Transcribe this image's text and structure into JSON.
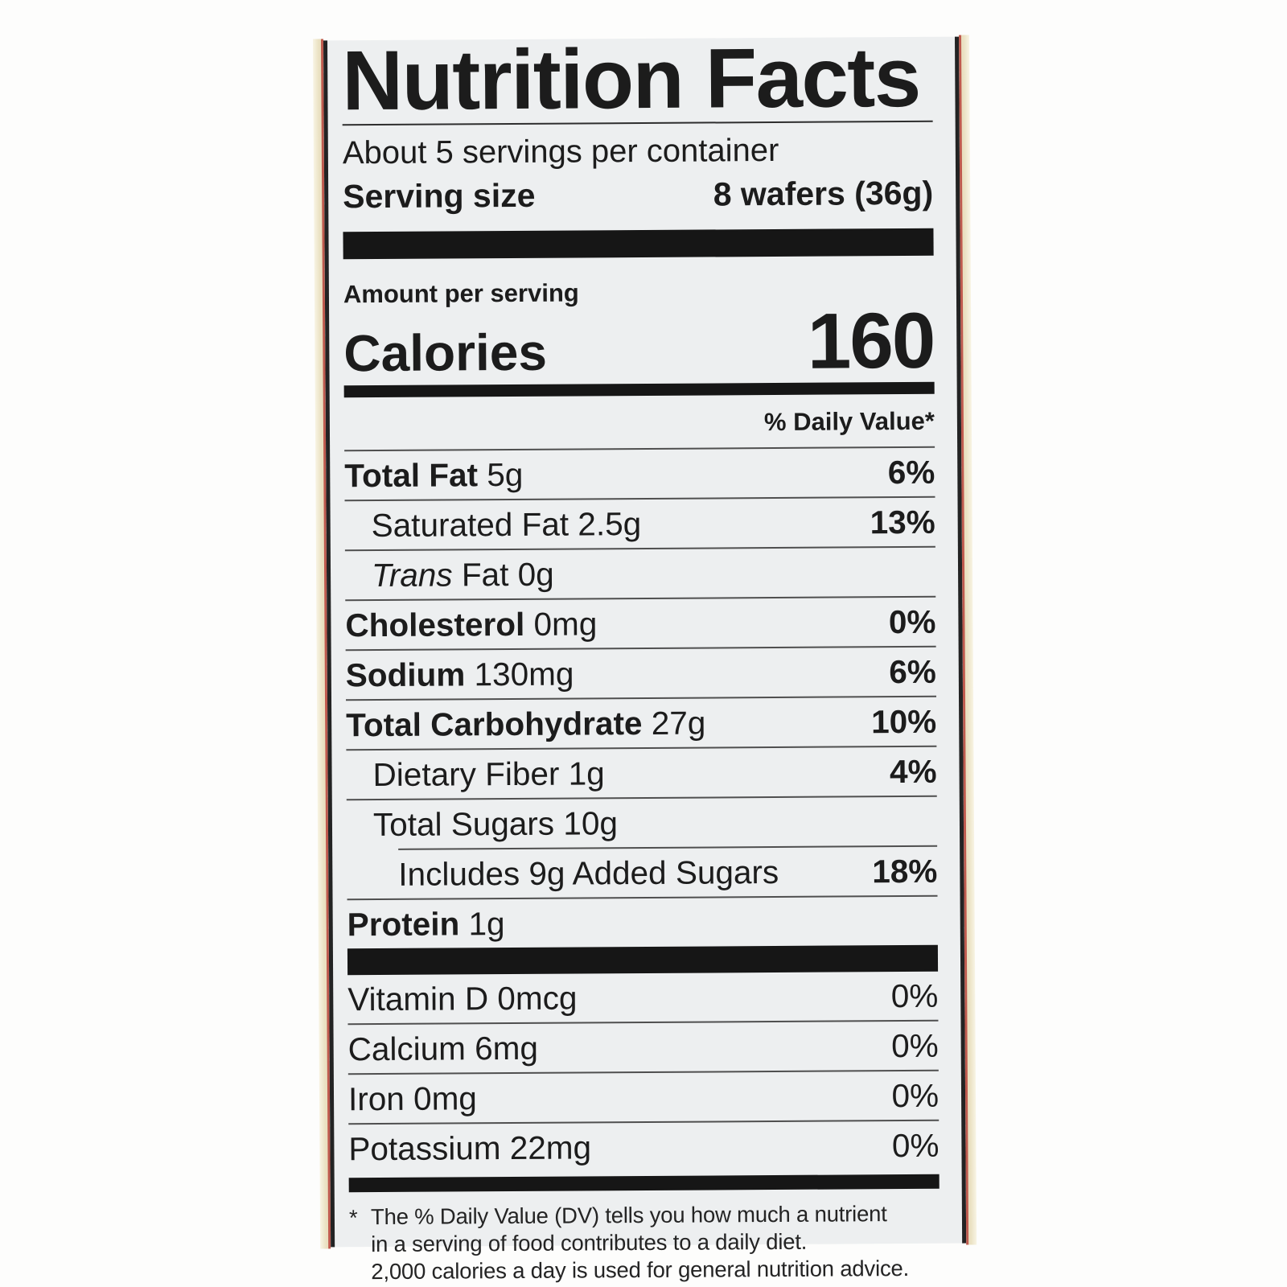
{
  "label": {
    "title": "Nutrition Facts",
    "servings_per_container": "About 5 servings per container",
    "serving_size_label": "Serving size",
    "serving_size_value": "8 wafers (36g)",
    "amount_per_serving": "Amount per serving",
    "calories_label": "Calories",
    "calories_value": "160",
    "daily_value_header": "% Daily Value*",
    "nutrients": [
      {
        "name": "Total Fat",
        "amount": "5g",
        "dv": "6%",
        "bold": true,
        "indent": 0
      },
      {
        "name": "Saturated Fat",
        "amount": "2.5g",
        "dv": "13%",
        "bold": false,
        "indent": 1
      },
      {
        "prefix_italic": "Trans",
        "name": "Fat",
        "amount": "0g",
        "dv": "",
        "bold": false,
        "indent": 1
      },
      {
        "name": "Cholesterol",
        "amount": "0mg",
        "dv": "0%",
        "bold": true,
        "indent": 0
      },
      {
        "name": "Sodium",
        "amount": "130mg",
        "dv": "6%",
        "bold": true,
        "indent": 0
      },
      {
        "name": "Total Carbohydrate",
        "amount": "27g",
        "dv": "10%",
        "bold": true,
        "indent": 0
      },
      {
        "name": "Dietary Fiber",
        "amount": "1g",
        "dv": "4%",
        "bold": false,
        "indent": 1
      },
      {
        "name": "Total Sugars",
        "amount": "10g",
        "dv": "",
        "bold": false,
        "indent": 1
      },
      {
        "name": "Includes 9g Added Sugars",
        "amount": "",
        "dv": "18%",
        "bold": false,
        "indent": 2
      },
      {
        "name": "Protein",
        "amount": "1g",
        "dv": "",
        "bold": true,
        "indent": 0
      }
    ],
    "micronutrients": [
      {
        "name": "Vitamin D",
        "amount": "0mcg",
        "dv": "0%"
      },
      {
        "name": "Calcium",
        "amount": "6mg",
        "dv": "0%"
      },
      {
        "name": "Iron",
        "amount": "0mg",
        "dv": "0%"
      },
      {
        "name": "Potassium",
        "amount": "22mg",
        "dv": "0%"
      }
    ],
    "footnote": {
      "marker": "*",
      "lines": [
        "The % Daily Value (DV) tells you how much a nutrient",
        "in a serving of food contributes to a daily diet.",
        "2,000 calories a day is used for general nutrition advice."
      ]
    },
    "colors": {
      "label_background": "#edeff0",
      "text": "#1c1c1c",
      "bars": "#161616",
      "hairline": "#4f4f4f",
      "package_edge_cream": "#eae1c2",
      "package_edge_red": "#bf5a4e",
      "page_background": "#fdfdfc"
    }
  }
}
